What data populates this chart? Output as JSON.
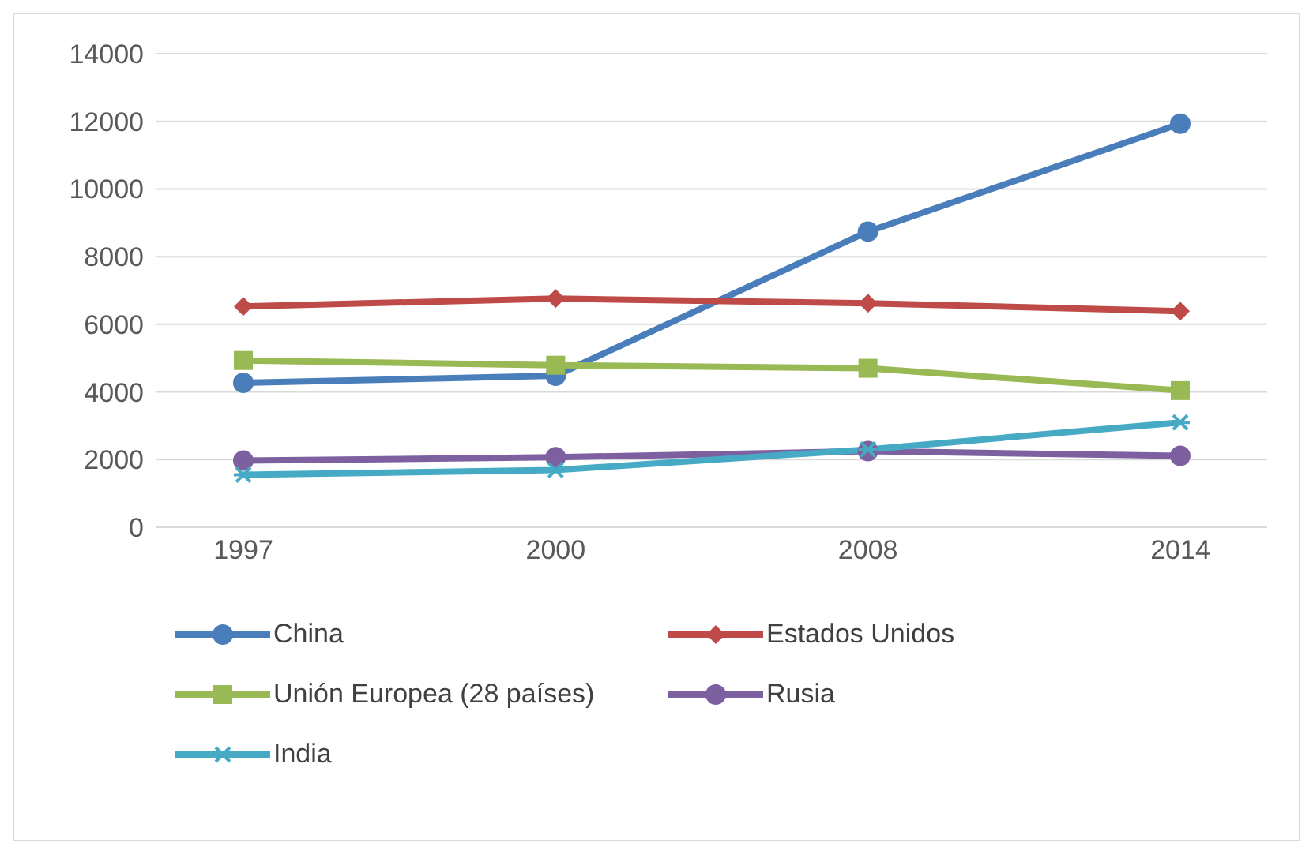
{
  "chart_data": {
    "type": "line",
    "categories": [
      "1997",
      "2000",
      "2008",
      "2014"
    ],
    "series": [
      {
        "name": "China",
        "color": "#4a7ebb",
        "marker": "circle",
        "values": [
          4270,
          4480,
          8740,
          11930
        ]
      },
      {
        "name": "Estados Unidos",
        "color": "#be4b48",
        "marker": "diamond",
        "values": [
          6530,
          6760,
          6620,
          6390
        ]
      },
      {
        "name": "Unión Europea (28 países)",
        "color": "#98b954",
        "marker": "square",
        "values": [
          4930,
          4790,
          4700,
          4040
        ]
      },
      {
        "name": "Rusia",
        "color": "#7d60a0",
        "marker": "circle",
        "values": [
          1970,
          2070,
          2250,
          2110
        ]
      },
      {
        "name": "India",
        "color": "#46aac5",
        "marker": "cross",
        "values": [
          1550,
          1690,
          2300,
          3100
        ]
      }
    ],
    "ylim": [
      0,
      14000
    ],
    "yticks": [
      0,
      2000,
      4000,
      6000,
      8000,
      10000,
      12000,
      14000
    ],
    "grid": "y",
    "legend": "bottom",
    "line_style": "solid"
  }
}
